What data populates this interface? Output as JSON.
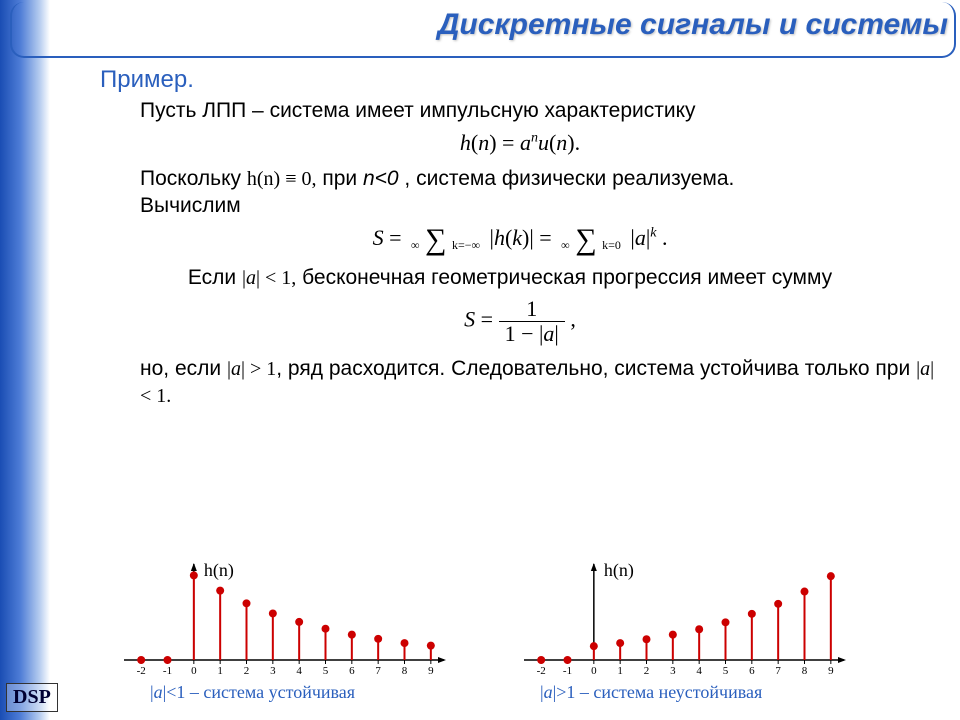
{
  "page": {
    "title": "Дискретные сигналы и системы",
    "dsp": "DSP",
    "example": "Пример.",
    "line1": "Пусть ЛПП – система имеет импульсную характеристику",
    "formula1_tex": "h(n) = aⁿu(n).",
    "line2a": "Поскольку ",
    "formula_inline1": "h(n) ≡ 0,",
    "line2b": " при ",
    "line2_var": "n<0",
    "line2c": ", система физически реализуема.",
    "line3": "Вычислим",
    "formula2": {
      "lhs": "S =",
      "sum1_top": "∞",
      "sum1_bot": "k=−∞",
      "sum1_body": "|h(k)| =",
      "sum2_top": "∞",
      "sum2_bot": "k=0",
      "sum2_body_pre": "|a|",
      "sum2_body_sup": "k",
      "tail": "."
    },
    "line4a": "Если ",
    "formula_inline2": "|a| < 1,",
    "line4b": " бесконечная геометрическая прогрессия имеет сумму",
    "formula3": {
      "lhs": "S =",
      "num": "1",
      "den": "1 − |a|",
      "tail": ","
    },
    "line5a": "но, если ",
    "formula_inline3": "|a| > 1",
    "line5b": ", ряд расходится. Следовательно, система устойчива только при ",
    "formula_inline4": "|a| < 1.",
    "chart_ylabel": "h(n)"
  },
  "charts_common": {
    "x_ticks": [
      -2,
      -1,
      0,
      1,
      2,
      3,
      4,
      5,
      6,
      7,
      8,
      9
    ],
    "x_range": [
      -2.5,
      9.5
    ],
    "axis_color": "#000000",
    "stem_color": "#cc0000",
    "marker_color": "#cc0000",
    "marker_radius": 4,
    "stem_width": 2,
    "tick_fontsize": 11,
    "ylabel_fontsize": 18
  },
  "chart_left": {
    "values": [
      0,
      0,
      1.0,
      0.82,
      0.67,
      0.55,
      0.45,
      0.37,
      0.3,
      0.25,
      0.2,
      0.17
    ],
    "ymax": 1.0
  },
  "chart_right": {
    "values": [
      0,
      0,
      0.18,
      0.22,
      0.27,
      0.33,
      0.4,
      0.49,
      0.6,
      0.73,
      0.89,
      1.09
    ],
    "ymax": 1.1
  },
  "captions": {
    "left": "|a|<1 – система устойчивая",
    "right": "|a|>1 – система неустойчивая"
  }
}
